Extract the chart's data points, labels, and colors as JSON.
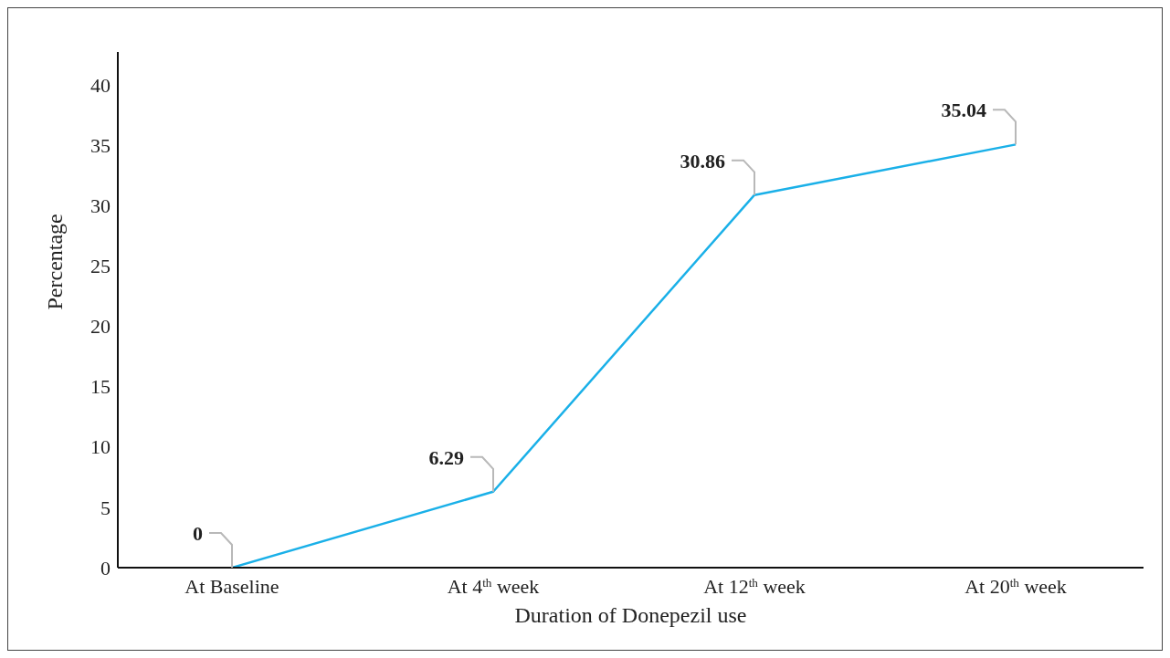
{
  "chart_data": {
    "type": "line",
    "xlabel": "Duration of Donepezil use",
    "ylabel": "Percentage",
    "categories": [
      "At Baseline",
      "At 4$^{th}$ week",
      "At 12$^{th}$ week",
      "At 20$^{th}$ week"
    ],
    "series": [
      {
        "color": "#1ab0e8",
        "values": [
          0,
          6.29,
          30.86,
          35.04
        ]
      }
    ],
    "ylim": [
      0,
      42.7
    ],
    "yticks": [
      0,
      5,
      10,
      15,
      20,
      25,
      30,
      35,
      40
    ],
    "marker": "none",
    "line_style": "solid",
    "data_labels": true
  }
}
